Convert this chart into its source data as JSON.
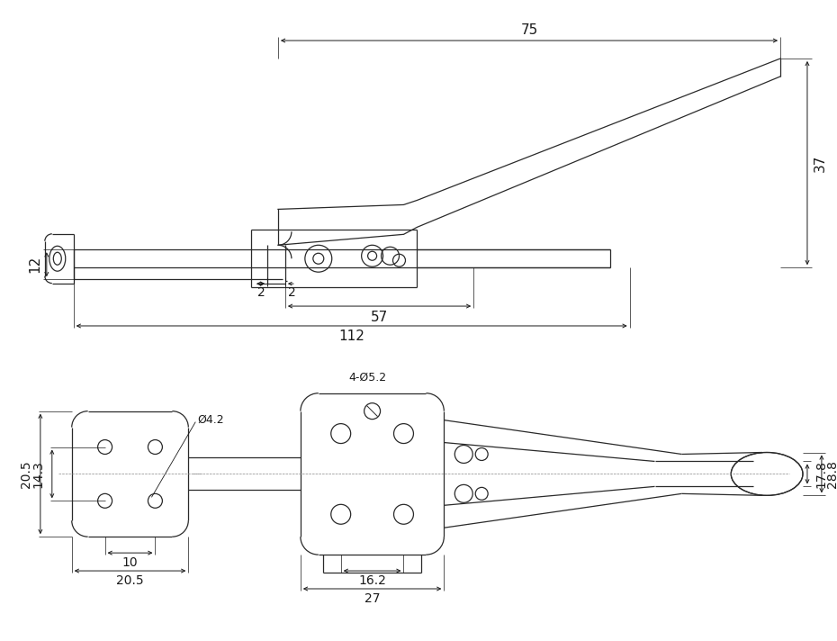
{
  "bg_color": "#ffffff",
  "line_color": "#2a2a2a",
  "dim_color": "#1a1a1a",
  "fig_width": 9.3,
  "fig_height": 7.12,
  "dpi": 100,
  "top_view": {
    "dim_75_label": "75",
    "dim_37_label": "37",
    "dim_12_label": "12",
    "dim_2a_label": "2",
    "dim_2b_label": "2",
    "dim_57_label": "57",
    "dim_112_label": "112"
  },
  "bottom_view": {
    "dim_20_5_left": "20.5",
    "dim_14_3": "14.3",
    "dim_phi4_2": "Ø4.2",
    "dim_4phi5_2": "4-Ø5.2",
    "dim_10": "10",
    "dim_20_5_bottom": "20.5",
    "dim_16_2": "16.2",
    "dim_27": "27",
    "dim_17_8": "17.8",
    "dim_28_8": "28.8"
  }
}
